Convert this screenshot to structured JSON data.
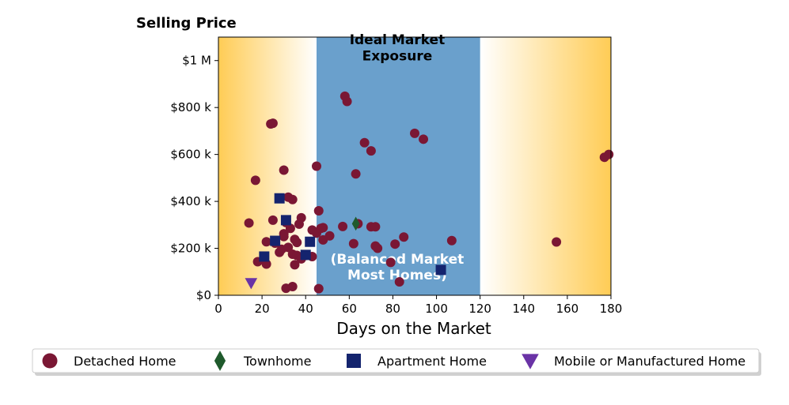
{
  "chart_data": {
    "type": "scatter",
    "title": "Selling Price",
    "xlabel": "Days on the Market",
    "ylabel": "",
    "xlim": [
      0,
      180
    ],
    "ylim": [
      0,
      1100000
    ],
    "x_ticks": [
      0,
      20,
      40,
      60,
      80,
      100,
      120,
      140,
      160,
      180
    ],
    "y_ticks": [
      {
        "value": 0,
        "label": "$0"
      },
      {
        "value": 200000,
        "label": "$200 k"
      },
      {
        "value": 400000,
        "label": "$400 k"
      },
      {
        "value": 600000,
        "label": "$600 k"
      },
      {
        "value": 800000,
        "label": "$800 k"
      },
      {
        "value": 1000000,
        "label": "$1 M"
      }
    ],
    "grid": false,
    "background": {
      "gradient_color": "#ffcc55",
      "gradient_edge_left": 0,
      "gradient_fade_left": 45,
      "gradient_fade_right": 120,
      "gradient_edge_right": 180,
      "band_color": "#6aa0cc",
      "band_range": [
        45,
        120
      ]
    },
    "annotations": [
      {
        "line1": "Ideal Market",
        "line2": "Exposure",
        "color": "#000000",
        "x": 82,
        "y1": 1070000,
        "y2": 1000000
      },
      {
        "line1": "(Balanced Market",
        "line2": "Most Homes)",
        "color": "#ffffff",
        "x": 82,
        "y1": 135000,
        "y2": 68000
      }
    ],
    "legend_position": "bottom",
    "series": [
      {
        "name": "Detached Home",
        "marker": "circle",
        "color": "#7a1734",
        "points": [
          [
            14,
            308000
          ],
          [
            17,
            490000
          ],
          [
            18,
            143000
          ],
          [
            22,
            133000
          ],
          [
            22,
            228000
          ],
          [
            24,
            730000
          ],
          [
            25,
            733000
          ],
          [
            25,
            320000
          ],
          [
            26,
            222000
          ],
          [
            28,
            183000
          ],
          [
            29,
            196000
          ],
          [
            30,
            533000
          ],
          [
            30,
            262000
          ],
          [
            30,
            250000
          ],
          [
            31,
            30000
          ],
          [
            31,
            310000
          ],
          [
            32,
            204000
          ],
          [
            32,
            418000
          ],
          [
            33,
            285000
          ],
          [
            34,
            37000
          ],
          [
            34,
            408000
          ],
          [
            34,
            175000
          ],
          [
            35,
            238000
          ],
          [
            35,
            130000
          ],
          [
            36,
            225000
          ],
          [
            36,
            170000
          ],
          [
            37,
            303000
          ],
          [
            38,
            330000
          ],
          [
            38,
            155000
          ],
          [
            40,
            170000
          ],
          [
            43,
            165000
          ],
          [
            43,
            278000
          ],
          [
            45,
            550000
          ],
          [
            45,
            265000
          ],
          [
            46,
            360000
          ],
          [
            46,
            28000
          ],
          [
            47,
            285000
          ],
          [
            48,
            236000
          ],
          [
            48,
            288000
          ],
          [
            51,
            253000
          ],
          [
            57,
            293000
          ],
          [
            58,
            848000
          ],
          [
            59,
            826000
          ],
          [
            62,
            220000
          ],
          [
            63,
            517000
          ],
          [
            64,
            305000
          ],
          [
            67,
            650000
          ],
          [
            70,
            615000
          ],
          [
            70,
            292000
          ],
          [
            72,
            292000
          ],
          [
            72,
            210000
          ],
          [
            73,
            200000
          ],
          [
            79,
            140000
          ],
          [
            81,
            218000
          ],
          [
            83,
            57000
          ],
          [
            85,
            248000
          ],
          [
            90,
            690000
          ],
          [
            94,
            665000
          ],
          [
            107,
            233000
          ],
          [
            155,
            227000
          ],
          [
            177,
            588000
          ],
          [
            179,
            600000
          ]
        ]
      },
      {
        "name": "Townhome",
        "marker": "diamond",
        "color": "#1f5a2c",
        "points": [
          [
            63,
            305000
          ]
        ]
      },
      {
        "name": "Apartment Home",
        "marker": "square",
        "color": "#14246e",
        "points": [
          [
            21,
            165000
          ],
          [
            26,
            232000
          ],
          [
            28,
            413000
          ],
          [
            31,
            320000
          ],
          [
            40,
            172000
          ],
          [
            42,
            228000
          ],
          [
            102,
            108000
          ]
        ]
      },
      {
        "name": "Mobile or Manufactured Home",
        "marker": "triangle-down",
        "color": "#6a33a6",
        "points": [
          [
            15,
            52000
          ]
        ]
      }
    ]
  }
}
